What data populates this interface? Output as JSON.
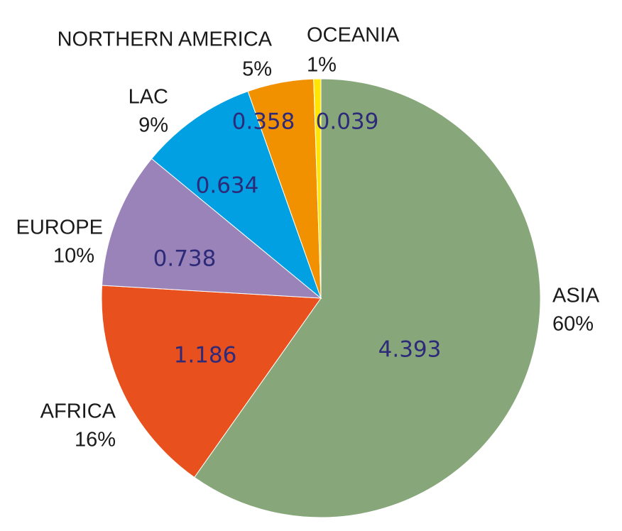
{
  "chart_data": {
    "type": "pie",
    "start_angle_deg": 0,
    "direction": "clockwise",
    "slices": [
      {
        "name": "ASIA",
        "value": 4.393,
        "percent": "60%",
        "color": "#87a77b"
      },
      {
        "name": "AFRICA",
        "value": 1.186,
        "percent": "16%",
        "color": "#e8501e"
      },
      {
        "name": "EUROPE",
        "value": 0.738,
        "percent": "10%",
        "color": "#9a83b8"
      },
      {
        "name": "LAC",
        "value": 0.634,
        "percent": "9%",
        "color": "#00a0e3"
      },
      {
        "name": "NORTHERN AMERICA",
        "value": 0.358,
        "percent": "5%",
        "color": "#f29100"
      },
      {
        "name": "OCEANIA",
        "value": 0.039,
        "percent": "1%",
        "color": "#ffe500"
      }
    ],
    "value_labels": [
      "4.393",
      "1.186",
      "0.738",
      "0.634",
      "0.358",
      "0.039"
    ],
    "value_label_color": "#2e2a7a"
  }
}
